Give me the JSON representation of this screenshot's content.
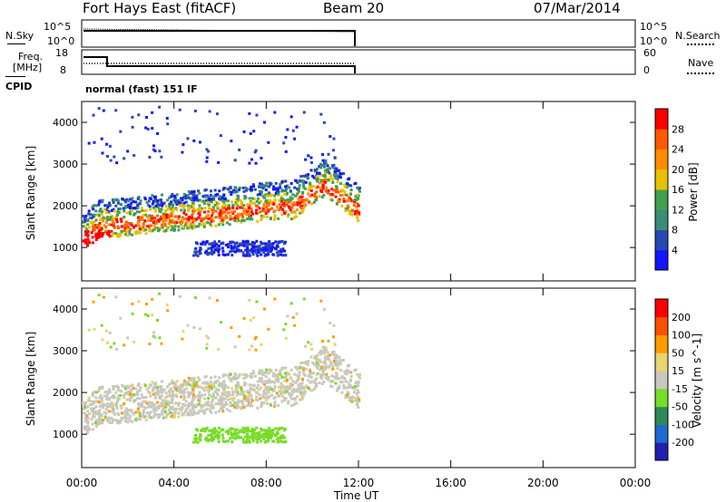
{
  "header": {
    "station": "Fort Hays East (fitACF)",
    "beam": "Beam 20",
    "date": "07/Mar/2014"
  },
  "noise_panel": {
    "left_label": "N.Sky",
    "right_label": "N.Search",
    "left_ticks": [
      "10^5",
      "10^0"
    ],
    "right_ticks": [
      "10^5",
      "10^0"
    ]
  },
  "freq_panel": {
    "left_label": "Freq.",
    "left_unit": "[MHz]",
    "right_label": "Nave",
    "left_ticks": [
      "18",
      "8"
    ],
    "right_ticks": [
      "60",
      "0"
    ],
    "cpid_label": "CPID",
    "cpid_value": "normal (fast) 151 IF"
  },
  "chart_data": [
    {
      "type": "heatmap",
      "ylabel": "Slant Range [km]",
      "y_ticks": [
        "1000",
        "2000",
        "3000",
        "4000"
      ],
      "ylim": [
        200,
        4500
      ],
      "xlim": [
        0,
        24
      ],
      "colorbar": {
        "label": "Power [dB]",
        "ticks": [
          "4",
          "8",
          "12",
          "16",
          "20",
          "24",
          "28"
        ],
        "colors": [
          "#1414ff",
          "#2848b4",
          "#3a8c78",
          "#40a050",
          "#e8c000",
          "#ff8c00",
          "#ff5a00",
          "#ff0000"
        ]
      }
    },
    {
      "type": "heatmap",
      "ylabel": "Slant Range [km]",
      "y_ticks": [
        "1000",
        "2000",
        "3000",
        "4000"
      ],
      "ylim": [
        200,
        4500
      ],
      "xlim": [
        0,
        24
      ],
      "colorbar": {
        "label": "Velocity [m s^-1]",
        "ticks": [
          "200",
          "100",
          "50",
          "15",
          "-15",
          "-50",
          "-100",
          "-200"
        ],
        "colors": [
          "#2020b0",
          "#1e6ad0",
          "#2e8b57",
          "#78dc28",
          "#c8c8be",
          "#e8d470",
          "#ff9c00",
          "#ff5000",
          "#ff0000"
        ]
      }
    }
  ],
  "x_axis": {
    "ticks": [
      "00:00",
      "04:00",
      "08:00",
      "12:00",
      "16:00",
      "20:00",
      "00:00"
    ],
    "label": "Time UT"
  }
}
